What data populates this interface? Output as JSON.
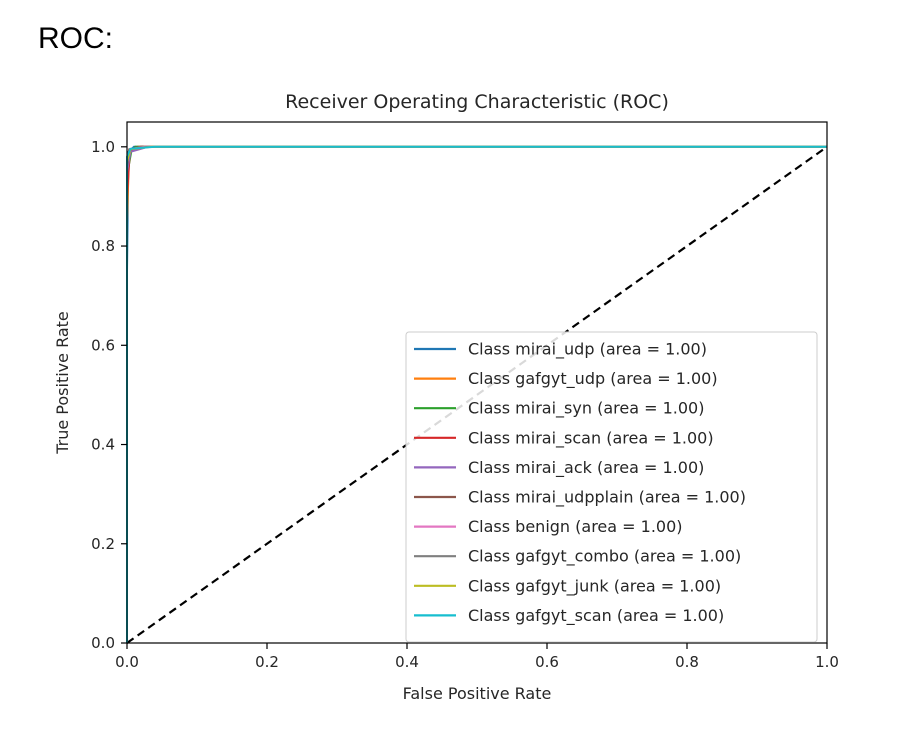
{
  "page": {
    "heading": "ROC:"
  },
  "chart_data": {
    "type": "line",
    "title": "Receiver Operating Characteristic (ROC)",
    "xlabel": "False Positive Rate",
    "ylabel": "True Positive Rate",
    "xlim": [
      0.0,
      1.0
    ],
    "ylim": [
      0.0,
      1.05
    ],
    "xticks": [
      "0.0",
      "0.2",
      "0.4",
      "0.6",
      "0.8",
      "1.0"
    ],
    "yticks": [
      "0.0",
      "0.2",
      "0.4",
      "0.6",
      "0.8",
      "1.0"
    ],
    "grid": false,
    "legend_position": "lower-right",
    "series": [
      {
        "name": "Class mirai_udp (area = 1.00)",
        "color": "#1f77b4",
        "x": [
          0.0,
          0.0,
          0.002,
          0.01,
          1.0
        ],
        "y": [
          0.0,
          0.75,
          0.99,
          1.0,
          1.0
        ]
      },
      {
        "name": "Class gafgyt_udp (area = 1.00)",
        "color": "#ff7f0e",
        "x": [
          0.0,
          0.0,
          0.003,
          0.015,
          1.0
        ],
        "y": [
          0.0,
          0.85,
          0.99,
          1.0,
          1.0
        ]
      },
      {
        "name": "Class mirai_syn (area = 1.00)",
        "color": "#2ca02c",
        "x": [
          0.0,
          0.0,
          0.001,
          0.006,
          0.012,
          1.0
        ],
        "y": [
          0.0,
          0.93,
          0.95,
          0.99,
          1.0,
          1.0
        ]
      },
      {
        "name": "Class mirai_scan (area = 1.00)",
        "color": "#d62728",
        "x": [
          0.0,
          0.0,
          0.004,
          0.02,
          1.0
        ],
        "y": [
          0.0,
          0.9,
          0.99,
          1.0,
          1.0
        ]
      },
      {
        "name": "Class mirai_ack (area = 1.00)",
        "color": "#9467bd",
        "x": [
          0.0,
          0.0,
          0.005,
          0.03,
          1.0
        ],
        "y": [
          0.0,
          0.95,
          0.99,
          1.0,
          1.0
        ]
      },
      {
        "name": "Class mirai_udpplain (area = 1.00)",
        "color": "#8c564b",
        "x": [
          0.0,
          0.0,
          0.003,
          0.02,
          1.0
        ],
        "y": [
          0.0,
          0.96,
          0.995,
          1.0,
          1.0
        ]
      },
      {
        "name": "Class benign (area = 1.00)",
        "color": "#e377c2",
        "x": [
          0.0,
          0.0,
          0.004,
          0.025,
          1.0
        ],
        "y": [
          0.0,
          0.97,
          0.995,
          1.0,
          1.0
        ]
      },
      {
        "name": "Class gafgyt_combo (area = 1.00)",
        "color": "#7f7f7f",
        "x": [
          0.0,
          0.0,
          0.004,
          0.03,
          1.0
        ],
        "y": [
          0.0,
          0.97,
          0.995,
          1.0,
          1.0
        ]
      },
      {
        "name": "Class gafgyt_junk (area = 1.00)",
        "color": "#bcbd22",
        "x": [
          0.0,
          0.0,
          0.005,
          0.035,
          1.0
        ],
        "y": [
          0.0,
          0.97,
          0.995,
          1.0,
          1.0
        ]
      },
      {
        "name": "Class gafgyt_scan (area = 1.00)",
        "color": "#17becf",
        "x": [
          0.0,
          0.0,
          0.005,
          0.04,
          1.0
        ],
        "y": [
          0.0,
          0.98,
          0.996,
          1.0,
          1.0
        ]
      }
    ],
    "reference_line": {
      "x": [
        0.0,
        1.0
      ],
      "y": [
        0.0,
        1.0
      ],
      "color": "#000000",
      "style": "dashed"
    }
  }
}
